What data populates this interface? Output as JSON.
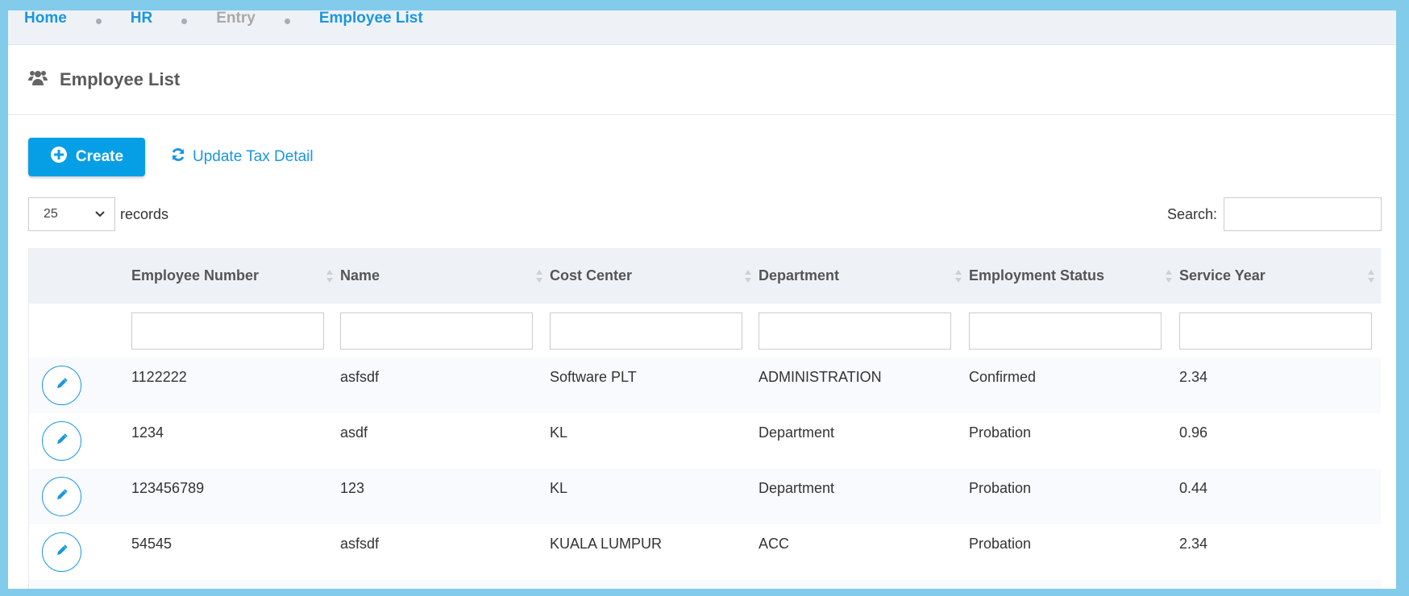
{
  "breadcrumb": [
    {
      "label": "Home",
      "state": "link"
    },
    {
      "label": "HR",
      "state": "link"
    },
    {
      "label": "Entry",
      "state": "disabled"
    },
    {
      "label": "Employee List",
      "state": "link"
    }
  ],
  "page": {
    "title": "Employee List",
    "icon": "users-icon"
  },
  "actions": {
    "create_label": "Create",
    "update_tax_label": "Update Tax Detail"
  },
  "length": {
    "value": "25",
    "label": "records"
  },
  "search": {
    "label": "Search:",
    "value": ""
  },
  "table": {
    "columns": [
      "Employee Number",
      "Name",
      "Cost Center",
      "Department",
      "Employment Status",
      "Service Year"
    ],
    "rows": [
      [
        "1122222",
        "asfsdf",
        "Software PLT",
        "ADMINISTRATION",
        "Confirmed",
        "2.34"
      ],
      [
        "1234",
        "asdf",
        "KL",
        "Department",
        "Probation",
        "0.96"
      ],
      [
        "123456789",
        "123",
        "KL",
        "Department",
        "Probation",
        "0.44"
      ],
      [
        "54545",
        "asfsdf",
        "KUALA LUMPUR",
        "ACC",
        "Probation",
        "2.34"
      ],
      [
        "",
        "",
        "",
        "",
        "",
        ""
      ]
    ]
  },
  "colors": {
    "accent": "#069fe6",
    "link": "#1a96e0",
    "frame": "#82cbea"
  }
}
